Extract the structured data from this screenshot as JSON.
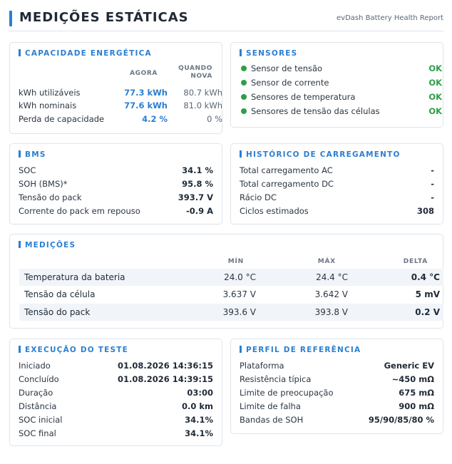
{
  "header": {
    "title": "MEDIÇÕES ESTÁTICAS",
    "subtitle": "evDash Battery Health Report"
  },
  "capacity": {
    "title": "CAPACIDADE ENERGÉTICA",
    "col_now": "AGORA",
    "col_new_1": "QUANDO",
    "col_new_2": "NOVA",
    "rows": [
      {
        "label": "kWh utilizáveis",
        "now": "77.3 kWh",
        "new": "80.7 kWh"
      },
      {
        "label": "kWh nominais",
        "now": "77.6 kWh",
        "new": "81.0 kWh"
      },
      {
        "label": "Perda de capacidade",
        "now": "4.2 %",
        "new": "0 %"
      }
    ]
  },
  "sensors": {
    "title": "SENSORES",
    "status_color": "#2e9e4a",
    "rows": [
      {
        "label": "Sensor de tensão",
        "status": "OK"
      },
      {
        "label": "Sensor de corrente",
        "status": "OK"
      },
      {
        "label": "Sensores de temperatura",
        "status": "OK"
      },
      {
        "label": "Sensores de tensão das células",
        "status": "OK"
      }
    ]
  },
  "bms": {
    "title": "BMS",
    "rows": [
      {
        "label": "SOC",
        "value": "34.1 %"
      },
      {
        "label": "SOH (BMS)*",
        "value": "95.8 %"
      },
      {
        "label": "Tensão do pack",
        "value": "393.7 V"
      },
      {
        "label": "Corrente do pack em repouso",
        "value": "-0.9 A"
      }
    ]
  },
  "charging": {
    "title": "HISTÓRICO DE CARREGAMENTO",
    "rows": [
      {
        "label": "Total carregamento AC",
        "value": "-"
      },
      {
        "label": "Total carregamento DC",
        "value": "-"
      },
      {
        "label": "Rácio DC",
        "value": "-"
      },
      {
        "label": "Ciclos estimados",
        "value": "308"
      }
    ]
  },
  "measurements": {
    "title": "MEDIÇÕES",
    "col_min": "MÍN",
    "col_max": "MÁX",
    "col_delta": "DELTA",
    "rows": [
      {
        "label": "Temperatura da bateria",
        "min": "24.0 °C",
        "max": "24.4 °C",
        "delta": "0.4 °C"
      },
      {
        "label": "Tensão da célula",
        "min": "3.637 V",
        "max": "3.642 V",
        "delta": "5 mV"
      },
      {
        "label": "Tensão do pack",
        "min": "393.6 V",
        "max": "393.8 V",
        "delta": "0.2 V"
      }
    ]
  },
  "test_run": {
    "title": "EXECUÇÃO DO TESTE",
    "rows": [
      {
        "label": "Iniciado",
        "value": "01.08.2026 14:36:15"
      },
      {
        "label": "Concluído",
        "value": "01.08.2026 14:39:15"
      },
      {
        "label": "Duração",
        "value": "03:00"
      },
      {
        "label": "Distância",
        "value": "0.0 km"
      },
      {
        "label": "SOC inicial",
        "value": "34.1%"
      },
      {
        "label": "SOC final",
        "value": "34.1%"
      }
    ]
  },
  "reference": {
    "title": "PERFIL DE REFERÊNCIA",
    "rows": [
      {
        "label": "Plataforma",
        "value": "Generic EV"
      },
      {
        "label": "Resistência típica",
        "value": "~450 mΩ"
      },
      {
        "label": "Limite de preocupação",
        "value": "675 mΩ"
      },
      {
        "label": "Limite de falha",
        "value": "900 mΩ"
      },
      {
        "label": "Bandas de SOH",
        "value": "95/90/85/80 %"
      }
    ]
  },
  "accent_color": "#2b7fd1"
}
